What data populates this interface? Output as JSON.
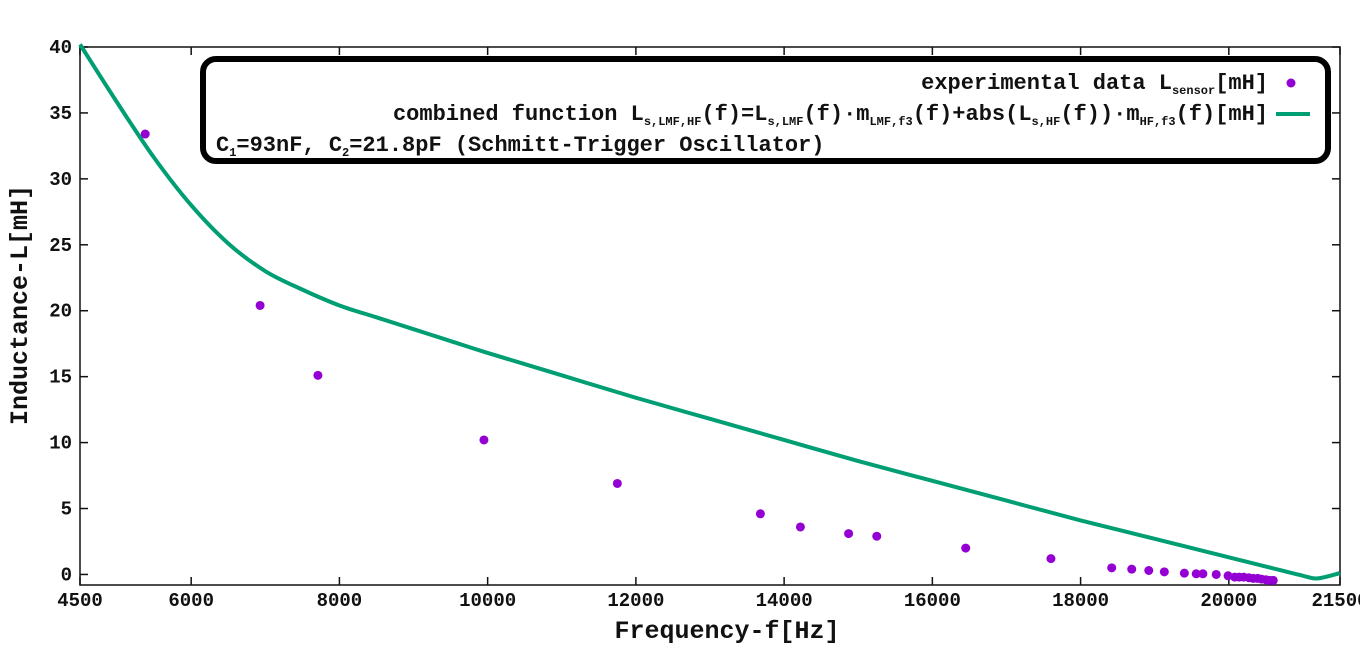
{
  "chart_data": {
    "type": "line",
    "xlabel": "Frequency-f[Hz]",
    "ylabel": "Inductance-L[mH]",
    "xlim": [
      4500,
      21500
    ],
    "ylim": [
      -0.8,
      40
    ],
    "x_ticks": [
      4500,
      6000,
      8000,
      10000,
      12000,
      14000,
      16000,
      18000,
      20000,
      21500
    ],
    "y_ticks": [
      0,
      5,
      10,
      15,
      20,
      25,
      30,
      35,
      40
    ],
    "grid": false,
    "legend_position": "top-right",
    "colors": {
      "experimental": "#9400d3",
      "combined": "#009e73"
    },
    "series": [
      {
        "name": "experimental data L_sensor[mH]",
        "kind": "scatter",
        "points": [
          [
            5380,
            33.4
          ],
          [
            6930,
            20.4
          ],
          [
            7710,
            15.1
          ],
          [
            9950,
            10.2
          ],
          [
            11750,
            6.9
          ],
          [
            13680,
            4.6
          ],
          [
            14220,
            3.6
          ],
          [
            14870,
            3.1
          ],
          [
            15250,
            2.9
          ],
          [
            16450,
            2.0
          ],
          [
            17600,
            1.2
          ],
          [
            18420,
            0.5
          ],
          [
            18690,
            0.4
          ],
          [
            18920,
            0.3
          ],
          [
            19130,
            0.2
          ],
          [
            19400,
            0.1
          ],
          [
            19560,
            0.05
          ],
          [
            19650,
            0.05
          ],
          [
            19830,
            0.0
          ],
          [
            19990,
            -0.1
          ],
          [
            20080,
            -0.2
          ],
          [
            20140,
            -0.2
          ],
          [
            20200,
            -0.2
          ],
          [
            20270,
            -0.25
          ],
          [
            20330,
            -0.3
          ],
          [
            20390,
            -0.3
          ],
          [
            20440,
            -0.35
          ],
          [
            20500,
            -0.4
          ],
          [
            20550,
            -0.45
          ],
          [
            20600,
            -0.45
          ]
        ]
      },
      {
        "name": "combined function L_s,LMF,HF(f)=L_s,LMF(f)·m_LMF,f3(f)+abs(L_s,HF(f))·m_HF,f3(f)[mH]",
        "kind": "line",
        "points": [
          [
            4500,
            40.2
          ],
          [
            5000,
            35.8
          ],
          [
            5500,
            31.6
          ],
          [
            6000,
            28.0
          ],
          [
            6500,
            25.1
          ],
          [
            7000,
            23.0
          ],
          [
            7500,
            21.6
          ],
          [
            8000,
            20.4
          ],
          [
            8500,
            19.5
          ],
          [
            9000,
            18.6
          ],
          [
            9500,
            17.7
          ],
          [
            10000,
            16.8
          ],
          [
            11000,
            15.1
          ],
          [
            12000,
            13.4
          ],
          [
            13000,
            11.8
          ],
          [
            14000,
            10.2
          ],
          [
            15000,
            8.6
          ],
          [
            16000,
            7.1
          ],
          [
            17000,
            5.6
          ],
          [
            18000,
            4.1
          ],
          [
            19000,
            2.7
          ],
          [
            20000,
            1.3
          ],
          [
            20500,
            0.6
          ],
          [
            21000,
            -0.1
          ],
          [
            21200,
            -0.3
          ],
          [
            21500,
            0.1
          ]
        ]
      }
    ]
  },
  "legend": {
    "entry1": {
      "prefix": "experimental data L",
      "sub": "sensor",
      "suffix": "[mH]"
    },
    "entry2": {
      "t1": "combined function L",
      "s1": "s,LMF,HF",
      "t2": "(f)=L",
      "s2": "s,LMF",
      "t3": "(f)·m",
      "s3": "LMF,f3",
      "t4": "(f)+abs(L",
      "s4": "s,HF",
      "t5": "(f))·m",
      "s5": "HF,f3",
      "t6": "(f)[mH]"
    },
    "entry3": {
      "t1": "C",
      "s1": "1",
      "t2": "=93nF, C",
      "s2": "2",
      "t3": "=21.8pF (Schmitt-Trigger Oscillator)"
    }
  }
}
